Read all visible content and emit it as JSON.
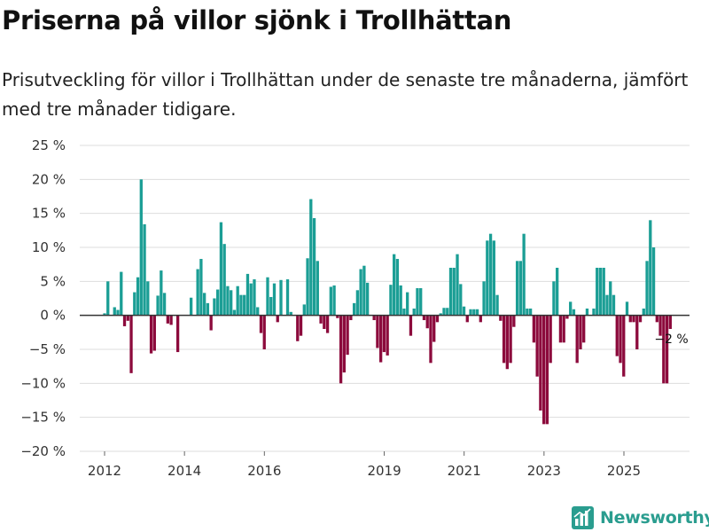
{
  "title": "Priserna på villor sjönk i Trollhättan",
  "subtitle": "Prisutveckling för villor i Trollhättan under de senaste tre månaderna, jämfört med tre månader tidigare.",
  "brand": {
    "name": "Newsworthy",
    "color": "#2a9d8f",
    "icon": "bar-chart-icon"
  },
  "colors": {
    "positive": "#1b9e95",
    "negative": "#8c0a3c",
    "zero_line": "#333333",
    "grid": "#dddddd"
  },
  "chart_data": {
    "type": "bar",
    "title": "Priserna på villor sjönk i Trollhättan",
    "xlabel": "",
    "ylabel": "",
    "ylim": [
      -20,
      25
    ],
    "y_ticks": [
      25,
      20,
      15,
      10,
      5,
      0,
      -5,
      -10,
      -15,
      -20
    ],
    "y_tick_labels": [
      "25 %",
      "20 %",
      "15 %",
      "10 %",
      "5 %",
      "0 %",
      "−5 %",
      "−10 %",
      "−15 %",
      "−20 %"
    ],
    "x_start": 2012.0,
    "x_step": 0.0833,
    "x_ticks": [
      2012,
      2014,
      2016,
      2019,
      2021,
      2023,
      2025
    ],
    "x_tick_labels": [
      "2012",
      "2014",
      "2016",
      "2019",
      "2021",
      "2023",
      "2025"
    ],
    "end_label": "−2 %",
    "values": [
      0.3,
      5,
      null,
      1.2,
      0.8,
      6.4,
      -1.6,
      -0.8,
      -8.5,
      3.4,
      5.6,
      20,
      13.4,
      5,
      -5.6,
      -5.2,
      2.9,
      6.6,
      3.3,
      -1.2,
      -1.4,
      null,
      -5.4,
      null,
      null,
      null,
      2.6,
      null,
      6.8,
      8.3,
      3.3,
      1.8,
      -2.2,
      2.5,
      3.8,
      13.7,
      10.5,
      4.3,
      3.7,
      0.8,
      4.3,
      3,
      3,
      6.1,
      4.7,
      5.3,
      1.2,
      -2.6,
      -5,
      5.6,
      2.7,
      4.7,
      -1,
      5.2,
      null,
      5.3,
      0.5,
      null,
      -3.8,
      -3,
      1.6,
      8.4,
      17.1,
      14.3,
      8,
      -1.2,
      -2,
      -2.6,
      4.2,
      4.4,
      -0.4,
      -10,
      -8.4,
      -5.8,
      -0.7,
      1.8,
      3.7,
      6.8,
      7.3,
      4.8,
      null,
      -0.7,
      -4.8,
      -6.9,
      -5.4,
      -5.9,
      4.5,
      9,
      8.3,
      4.4,
      1,
      3.4,
      -3,
      1,
      4,
      4,
      -0.7,
      -1.9,
      -7,
      -3.9,
      -1,
      0.3,
      1.1,
      1.1,
      7,
      7,
      9,
      4.6,
      1.3,
      -1,
      0.9,
      0.9,
      0.9,
      -1,
      5,
      11,
      12,
      11,
      3,
      -0.8,
      -7,
      -7.9,
      -7,
      -1.7,
      8,
      8,
      12,
      1,
      1,
      -4,
      -9,
      -14,
      -16,
      -16,
      -7,
      5,
      7,
      -4,
      -4,
      -0.5,
      2,
      0.9,
      -7,
      -5,
      -4,
      1,
      null,
      1,
      7,
      7,
      7,
      3,
      5,
      3,
      -6,
      -7,
      -9,
      2,
      -1,
      -1,
      -5,
      -1,
      1,
      8,
      14,
      10,
      -1,
      -3,
      -10,
      -10,
      -2
    ]
  }
}
